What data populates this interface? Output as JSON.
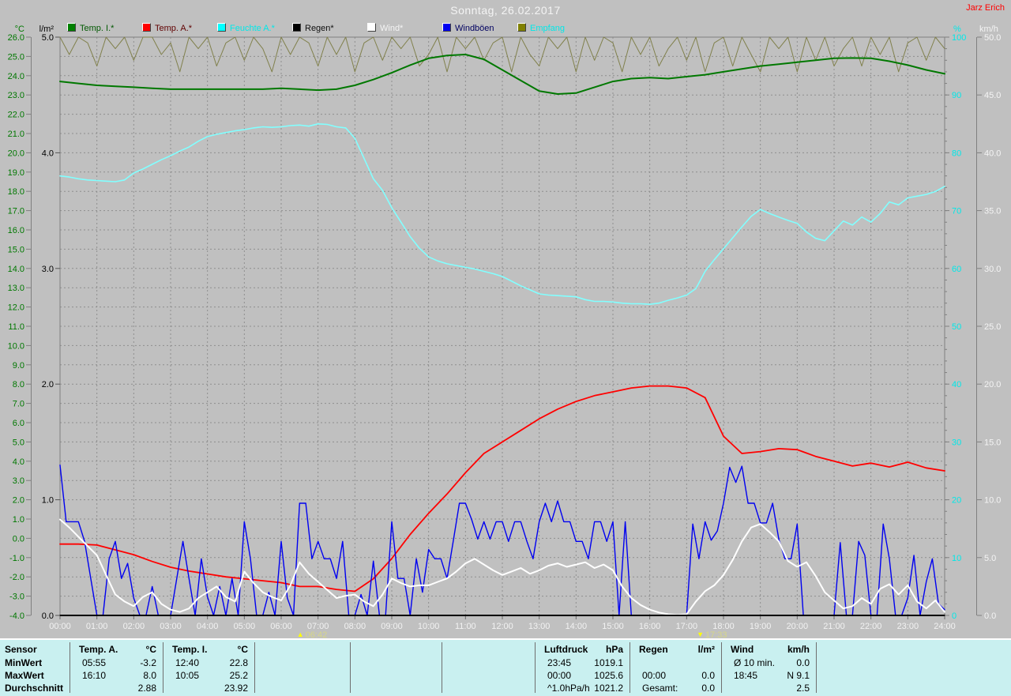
{
  "header": {
    "title": "Sonntag, 26.02.2017",
    "owner": "Jarz Erich"
  },
  "legend": {
    "items": [
      {
        "label": "Temp. I.*",
        "swatch": "#008000",
        "text_color": "#005800"
      },
      {
        "label": "Temp. A.*",
        "swatch": "#ff0000",
        "text_color": "#600000"
      },
      {
        "label": "Feuchte A.*",
        "swatch": "#00ffff",
        "text_color": "#00e8e8"
      },
      {
        "label": "Regen*",
        "swatch": "#000000",
        "text_color": "#101010"
      },
      {
        "label": "Wind*",
        "swatch": "#ffffff",
        "text_color": "#f4f4f4"
      },
      {
        "label": "Windböen",
        "swatch": "#0000f0",
        "text_color": "#000060"
      },
      {
        "label": "Empfang",
        "swatch": "#808000",
        "text_color": "#00e8e8"
      }
    ]
  },
  "axes": {
    "temp": {
      "unit": "°C",
      "min": -4,
      "max": 26,
      "step": 1,
      "decimals": 1,
      "color": "#007800",
      "side": "left-outer"
    },
    "rain": {
      "unit": "l/m²",
      "min": 0,
      "max": 5,
      "step": 1,
      "decimals": 1,
      "color": "#000000",
      "side": "left-inner"
    },
    "percent": {
      "unit": "%",
      "min": 0,
      "max": 100,
      "step": 10,
      "decimals": 0,
      "color": "#00e8e8",
      "side": "right-inner"
    },
    "wind": {
      "unit": "km/h",
      "min": 0,
      "max": 50,
      "step": 5,
      "decimals": 1,
      "color": "#f4f4f4",
      "side": "right-outer"
    },
    "x_labels": [
      "00:00",
      "01:00",
      "02:00",
      "03:00",
      "04:00",
      "05:00",
      "06:00",
      "07:00",
      "08:00",
      "09:00",
      "10:00",
      "11:00",
      "12:00",
      "13:00",
      "14:00",
      "15:00",
      "16:00",
      "17:00",
      "18:00",
      "19:00",
      "20:00",
      "21:00",
      "22:00",
      "23:00",
      "24:00"
    ]
  },
  "annotations": {
    "sunrise": {
      "time": "06:42",
      "hour": 6.7,
      "icon": "sunrise-icon",
      "glyph": "▲"
    },
    "sunset": {
      "time": "17:33",
      "hour": 17.55,
      "icon": "sunset-icon",
      "glyph": "▼"
    }
  },
  "chart_data": {
    "type": "line",
    "x_unit": "hours",
    "x_range": [
      0,
      24
    ],
    "grid": "hourly vertical dashed, 1°C horizontal dashed",
    "series": [
      {
        "name": "Empfang",
        "axis": "percent",
        "color": "#80804c",
        "width": 1,
        "interval_min": 15,
        "values": [
          100,
          97,
          100,
          99,
          95,
          100,
          98,
          100,
          96,
          100,
          100,
          97,
          99,
          94,
          100,
          98,
          100,
          95,
          99,
          100,
          96,
          100,
          98,
          94,
          100,
          97,
          100,
          99,
          95,
          100,
          97,
          100,
          94,
          99,
          100,
          96,
          100,
          98,
          100,
          95,
          97,
          100,
          94,
          100,
          98,
          100,
          96,
          99,
          100,
          94,
          100,
          97,
          95,
          100,
          98,
          100,
          94,
          100,
          96,
          100,
          99,
          94,
          100,
          97,
          100,
          95,
          98,
          100,
          96,
          100,
          94,
          99,
          100,
          95,
          100,
          97,
          94,
          100,
          98,
          100,
          94,
          100,
          96,
          100,
          95,
          98,
          100,
          95,
          100,
          97,
          100,
          94,
          99,
          100,
          96,
          100,
          98
        ]
      },
      {
        "name": "Feuchte A.",
        "axis": "percent",
        "color": "#82ffff",
        "width": 1.6,
        "interval_min": 15,
        "values": [
          76,
          75.8,
          75.5,
          75.3,
          75.2,
          75.1,
          75,
          75.3,
          76.5,
          77.2,
          78,
          78.8,
          79.5,
          80.3,
          81,
          82,
          82.8,
          83.2,
          83.5,
          83.8,
          84,
          84.3,
          84.5,
          84.4,
          84.5,
          84.7,
          84.8,
          84.6,
          85,
          84.9,
          84.5,
          84.3,
          82.5,
          79,
          75.5,
          73.5,
          70.5,
          68,
          65.5,
          63.5,
          62,
          61.3,
          60.8,
          60.5,
          60.2,
          59.9,
          59.5,
          59.1,
          58.6,
          57.8,
          57,
          56.3,
          55.6,
          55.4,
          55.3,
          55.2,
          55.1,
          54.6,
          54.3,
          54.3,
          54.2,
          54,
          53.9,
          53.9,
          53.8,
          54,
          54.5,
          54.9,
          55.4,
          56.5,
          59.5,
          61.5,
          63.4,
          65.3,
          67.2,
          69,
          70.2,
          69.5,
          68.9,
          68.3,
          67.8,
          66.3,
          65.2,
          64.8,
          66.5,
          68.2,
          67.5,
          68.9,
          68,
          69.5,
          71.5,
          71,
          72.2,
          72.5,
          72.8,
          73.3,
          74.2
        ]
      },
      {
        "name": "Temp. I.",
        "axis": "temp",
        "color": "#007800",
        "width": 2,
        "interval_min": 30,
        "values": [
          23.7,
          23.6,
          23.5,
          23.45,
          23.4,
          23.35,
          23.3,
          23.3,
          23.3,
          23.3,
          23.3,
          23.3,
          23.35,
          23.3,
          23.25,
          23.3,
          23.5,
          23.8,
          24.15,
          24.55,
          24.9,
          25.05,
          25.1,
          24.85,
          24.3,
          23.75,
          23.2,
          23.05,
          23.1,
          23.4,
          23.7,
          23.85,
          23.9,
          23.85,
          23.95,
          24.05,
          24.2,
          24.35,
          24.5,
          24.6,
          24.7,
          24.8,
          24.9,
          24.92,
          24.9,
          24.75,
          24.55,
          24.3,
          24.1
        ]
      },
      {
        "name": "Regen",
        "axis": "rain",
        "color": "#000000",
        "width": 1.4,
        "interval_min": 1440,
        "values": [
          0,
          0
        ]
      },
      {
        "name": "Temp. A.",
        "axis": "temp",
        "color": "#ff0000",
        "width": 1.8,
        "interval_min": 30,
        "values": [
          -0.3,
          -0.3,
          -0.35,
          -0.6,
          -0.85,
          -1.2,
          -1.5,
          -1.7,
          -1.85,
          -2,
          -2.1,
          -2.2,
          -2.3,
          -2.5,
          -2.5,
          -2.65,
          -2.75,
          -2.1,
          -1.05,
          0.2,
          1.3,
          2.3,
          3.4,
          4.4,
          5,
          5.6,
          6.2,
          6.7,
          7.1,
          7.4,
          7.6,
          7.8,
          7.9,
          7.9,
          7.8,
          7.3,
          5.3,
          4.4,
          4.5,
          4.65,
          4.6,
          4.25,
          4,
          3.75,
          3.9,
          3.7,
          3.95,
          3.65,
          3.5
        ]
      },
      {
        "name": "Windböen",
        "axis": "wind",
        "color": "#0000f0",
        "width": 1.4,
        "interval_min": 10,
        "values": [
          13,
          8.1,
          8.1,
          8.1,
          6.4,
          3.2,
          0,
          0,
          4.9,
          6.4,
          3.2,
          4.5,
          1.5,
          0,
          0,
          2.5,
          0,
          0,
          0,
          3.2,
          6.4,
          3.2,
          0,
          4.9,
          1.6,
          0,
          2.5,
          0,
          3.2,
          0,
          8.1,
          4.9,
          0,
          0,
          2,
          0,
          6.4,
          1.5,
          0,
          9.7,
          9.7,
          4.9,
          6.4,
          4.9,
          4.9,
          3.2,
          6.4,
          0,
          0,
          1.8,
          0,
          4.7,
          0,
          0,
          8.1,
          3.2,
          3.2,
          0,
          4.9,
          2,
          5.7,
          4.9,
          4.9,
          3.2,
          6.4,
          9.7,
          9.7,
          8.3,
          6.6,
          8.1,
          6.6,
          8.1,
          8.1,
          6.4,
          8.1,
          8.1,
          6.4,
          4.9,
          8.1,
          9.7,
          8.1,
          9.9,
          8.1,
          8.1,
          6.4,
          6.4,
          4.9,
          8.1,
          8.1,
          6.4,
          8.1,
          0,
          8.1,
          0,
          0,
          0,
          0,
          0,
          0,
          0,
          0,
          0,
          0,
          7.9,
          4.9,
          8.1,
          6.5,
          7.3,
          9.7,
          12.8,
          11.5,
          12.9,
          9.7,
          9.7,
          8,
          8,
          9.7,
          6.6,
          4.9,
          4.9,
          7.9,
          0,
          0,
          0,
          0,
          0,
          0,
          6.3,
          0,
          0,
          6.4,
          5.2,
          0,
          0,
          7.9,
          4.9,
          0,
          0,
          1.5,
          5.2,
          0,
          2.9,
          4.9,
          1,
          0.5
        ]
      },
      {
        "name": "Wind",
        "axis": "wind",
        "color": "#ffffff",
        "width": 2,
        "interval_min": 15,
        "values": [
          8.3,
          7.6,
          6.8,
          6,
          5.2,
          3.5,
          1.8,
          1.2,
          0.8,
          1.6,
          2,
          1,
          0.5,
          0.3,
          0.6,
          1.5,
          2,
          2.5,
          1.6,
          1.2,
          3.8,
          2.8,
          2,
          1.6,
          1.3,
          2.6,
          4.6,
          3.6,
          2.9,
          2.2,
          1.5,
          1.7,
          1.8,
          1.2,
          0.8,
          1.8,
          3.2,
          2.8,
          2.5,
          2.6,
          2.6,
          2.9,
          3.2,
          3.8,
          4.5,
          4.9,
          4.4,
          3.9,
          3.5,
          3.8,
          4.1,
          3.6,
          3.9,
          4.3,
          4.5,
          4.2,
          4.4,
          4.6,
          4.1,
          4.4,
          3.9,
          2.5,
          1.5,
          0.9,
          0.5,
          0.25,
          0.1,
          0.05,
          0.1,
          1.2,
          2.1,
          2.6,
          3.5,
          4.8,
          6.4,
          7.6,
          7.9,
          7.2,
          6.4,
          4.7,
          4.2,
          4.6,
          3.4,
          2,
          1.3,
          0.6,
          0.8,
          1.5,
          1,
          2.3,
          2.7,
          1.8,
          2.6,
          1.2,
          0.6,
          1.3,
          0.3
        ]
      }
    ]
  },
  "table": {
    "row_labels": [
      "Sensor",
      "MinWert",
      "MaxWert",
      "Durchschnitt"
    ],
    "columns": [
      {
        "title": "Temp. A.",
        "unit": "°C",
        "cells": [
          [
            "05:55",
            "-3.2"
          ],
          [
            "16:10",
            "8.0"
          ],
          [
            "",
            "2.88"
          ]
        ]
      },
      {
        "title": "Temp. I.",
        "unit": "°C",
        "cells": [
          [
            "12:40",
            "22.8"
          ],
          [
            "10:05",
            "25.2"
          ],
          [
            "",
            "23.92"
          ]
        ]
      },
      {
        "title": "",
        "unit": "",
        "cells": [
          [
            "",
            ""
          ],
          [
            "",
            ""
          ],
          [
            "",
            ""
          ]
        ]
      },
      {
        "title": "",
        "unit": "",
        "cells": [
          [
            "",
            ""
          ],
          [
            "",
            ""
          ],
          [
            "",
            ""
          ]
        ]
      },
      {
        "title": "",
        "unit": "",
        "cells": [
          [
            "",
            ""
          ],
          [
            "",
            ""
          ],
          [
            "",
            ""
          ]
        ]
      },
      {
        "title": "Luftdruck",
        "unit": "hPa",
        "cells": [
          [
            "23:45",
            "1019.1"
          ],
          [
            "00:00",
            "1025.6"
          ],
          [
            "^1.0hPa/h",
            "1021.2"
          ]
        ]
      },
      {
        "title": "Regen",
        "unit": "l/m²",
        "cells": [
          [
            "",
            ""
          ],
          [
            "00:00",
            "0.0"
          ],
          [
            "Gesamt:",
            "0.0"
          ]
        ]
      },
      {
        "title": "Wind",
        "unit": "km/h",
        "cells": [
          [
            "Ø 10 min.",
            "0.0"
          ],
          [
            "18:45",
            "N 9.1"
          ],
          [
            "",
            "2.5"
          ]
        ]
      },
      {
        "title": "",
        "unit": "",
        "cells": [
          [
            "",
            ""
          ],
          [
            "",
            ""
          ],
          [
            "",
            ""
          ]
        ]
      }
    ]
  },
  "colors": {
    "background": "#c0c0c0",
    "grid": "#8e8e8e",
    "axis_rail": "#808080",
    "x_axis_line": "#000000",
    "x_label": "#f2f2f2",
    "table_bg": "#c9f0f0",
    "sun_marker": "#ffff00",
    "sun_text": "#d6d688"
  }
}
